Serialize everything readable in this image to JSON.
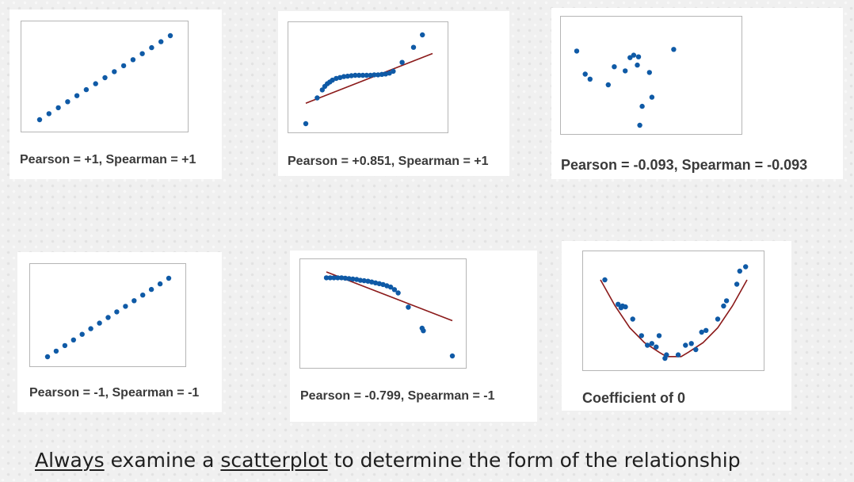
{
  "colors": {
    "point": "#0f5aa6",
    "fit_line": "#8b1a1a"
  },
  "chart_data": [
    {
      "type": "scatter",
      "caption": "Pearson = +1, Spearman = +1",
      "fit": "none",
      "xlim": [
        0,
        14
      ],
      "ylim": [
        0,
        14
      ],
      "points": [
        [
          0,
          0
        ],
        [
          1,
          1
        ],
        [
          2,
          2
        ],
        [
          3,
          3
        ],
        [
          4,
          4
        ],
        [
          5,
          5
        ],
        [
          6,
          6
        ],
        [
          7,
          7
        ],
        [
          8,
          8
        ],
        [
          9,
          9
        ],
        [
          10,
          10
        ],
        [
          11,
          11
        ],
        [
          12,
          12
        ],
        [
          13,
          13
        ],
        [
          14,
          14
        ]
      ]
    },
    {
      "type": "scatter",
      "caption": "Pearson = +0.851, Spearman = +1",
      "fit": "linear",
      "xlim": [
        0,
        10
      ],
      "ylim": [
        0,
        10
      ],
      "fit_line": [
        [
          0,
          2.3
        ],
        [
          10,
          7.9
        ]
      ],
      "points": [
        [
          0,
          0
        ],
        [
          0.9,
          2.9
        ],
        [
          1.3,
          3.8
        ],
        [
          1.5,
          4.2
        ],
        [
          1.7,
          4.5
        ],
        [
          1.9,
          4.7
        ],
        [
          2.1,
          4.9
        ],
        [
          2.4,
          5.1
        ],
        [
          2.7,
          5.2
        ],
        [
          3.0,
          5.3
        ],
        [
          3.3,
          5.35
        ],
        [
          3.6,
          5.4
        ],
        [
          3.9,
          5.45
        ],
        [
          4.2,
          5.45
        ],
        [
          4.5,
          5.45
        ],
        [
          4.8,
          5.45
        ],
        [
          5.1,
          5.45
        ],
        [
          5.4,
          5.5
        ],
        [
          5.7,
          5.5
        ],
        [
          6.0,
          5.55
        ],
        [
          6.3,
          5.6
        ],
        [
          6.6,
          5.7
        ],
        [
          6.9,
          5.9
        ],
        [
          7.6,
          6.9
        ],
        [
          8.5,
          8.6
        ],
        [
          9.2,
          10
        ]
      ]
    },
    {
      "type": "scatter",
      "caption": "Pearson = -0.093, Spearman = -0.093",
      "fit": "none",
      "xlim": [
        0,
        10
      ],
      "ylim": [
        0,
        10
      ],
      "points": [
        [
          0,
          9
        ],
        [
          0.7,
          6.2
        ],
        [
          1.1,
          5.6
        ],
        [
          2.6,
          4.9
        ],
        [
          3.1,
          7.1
        ],
        [
          4.0,
          6.6
        ],
        [
          4.4,
          8.2
        ],
        [
          4.7,
          8.5
        ],
        [
          5.0,
          7.3
        ],
        [
          5.1,
          8.3
        ],
        [
          5.4,
          2.3
        ],
        [
          5.2,
          0
        ],
        [
          6.0,
          6.4
        ],
        [
          6.2,
          3.4
        ],
        [
          8.0,
          9.2
        ]
      ]
    },
    {
      "type": "scatter",
      "caption": "Pearson = -1, Spearman = -1",
      "fit": "none",
      "xlim": [
        0,
        14
      ],
      "ylim": [
        0,
        14
      ],
      "points": [
        [
          0,
          14
        ],
        [
          1,
          13
        ],
        [
          2,
          12
        ],
        [
          3,
          11
        ],
        [
          4,
          10
        ],
        [
          5,
          9
        ],
        [
          6,
          8
        ],
        [
          7,
          7
        ],
        [
          8,
          6
        ],
        [
          9,
          5
        ],
        [
          10,
          4
        ],
        [
          11,
          3
        ],
        [
          12,
          2
        ],
        [
          13,
          1
        ],
        [
          14,
          0
        ]
      ]
    },
    {
      "type": "scatter",
      "caption": "Pearson = -0.799, Spearman = -1",
      "fit": "linear",
      "xlim": [
        0,
        10
      ],
      "ylim": [
        0,
        10
      ],
      "fit_line": [
        [
          0,
          10
        ],
        [
          10,
          4.2
        ]
      ],
      "points": [
        [
          0,
          9.3
        ],
        [
          0.3,
          9.3
        ],
        [
          0.6,
          9.3
        ],
        [
          0.9,
          9.3
        ],
        [
          1.2,
          9.3
        ],
        [
          1.5,
          9.25
        ],
        [
          1.8,
          9.2
        ],
        [
          2.1,
          9.15
        ],
        [
          2.4,
          9.1
        ],
        [
          2.7,
          9.0
        ],
        [
          3.0,
          8.95
        ],
        [
          3.3,
          8.9
        ],
        [
          3.6,
          8.8
        ],
        [
          3.9,
          8.7
        ],
        [
          4.2,
          8.6
        ],
        [
          4.5,
          8.5
        ],
        [
          4.8,
          8.35
        ],
        [
          5.1,
          8.2
        ],
        [
          5.4,
          7.9
        ],
        [
          5.7,
          7.5
        ],
        [
          6.5,
          5.8
        ],
        [
          7.6,
          3.3
        ],
        [
          7.7,
          3.0
        ],
        [
          10,
          0
        ]
      ]
    },
    {
      "type": "scatter",
      "caption": "Coefficient of 0",
      "fit": "quadratic",
      "xlim": [
        -5,
        5
      ],
      "ylim": [
        0,
        10
      ],
      "fit_line": [
        [
          -5,
          9.0
        ],
        [
          -4,
          6.0
        ],
        [
          -3,
          3.5
        ],
        [
          -2,
          1.8
        ],
        [
          -1,
          0.7
        ],
        [
          -0.5,
          0.2
        ],
        [
          0.5,
          0.2
        ],
        [
          1,
          0.7
        ],
        [
          2,
          1.8
        ],
        [
          3,
          3.5
        ],
        [
          4,
          6.0
        ],
        [
          5,
          9.0
        ]
      ],
      "points": [
        [
          -4.7,
          9.0
        ],
        [
          -3.8,
          6.2
        ],
        [
          -3.6,
          5.8
        ],
        [
          -3.5,
          6.0
        ],
        [
          -3.3,
          5.9
        ],
        [
          -2.8,
          4.5
        ],
        [
          -2.2,
          2.6
        ],
        [
          -1.8,
          1.5
        ],
        [
          -1.5,
          1.7
        ],
        [
          -1.2,
          1.3
        ],
        [
          -1.0,
          2.6
        ],
        [
          -0.6,
          0
        ],
        [
          -0.5,
          0.4
        ],
        [
          0.3,
          0.4
        ],
        [
          0.8,
          1.5
        ],
        [
          1.2,
          1.7
        ],
        [
          1.5,
          1.0
        ],
        [
          1.9,
          3.0
        ],
        [
          2.2,
          3.2
        ],
        [
          3.0,
          4.5
        ],
        [
          3.4,
          6.0
        ],
        [
          3.6,
          6.6
        ],
        [
          4.3,
          8.5
        ],
        [
          4.5,
          10
        ],
        [
          4.9,
          10.5
        ]
      ]
    }
  ],
  "footer": {
    "word1": "Always",
    "text1": " examine a ",
    "word2": "scatterplot",
    "text2": " to determine the form of the relationship"
  }
}
